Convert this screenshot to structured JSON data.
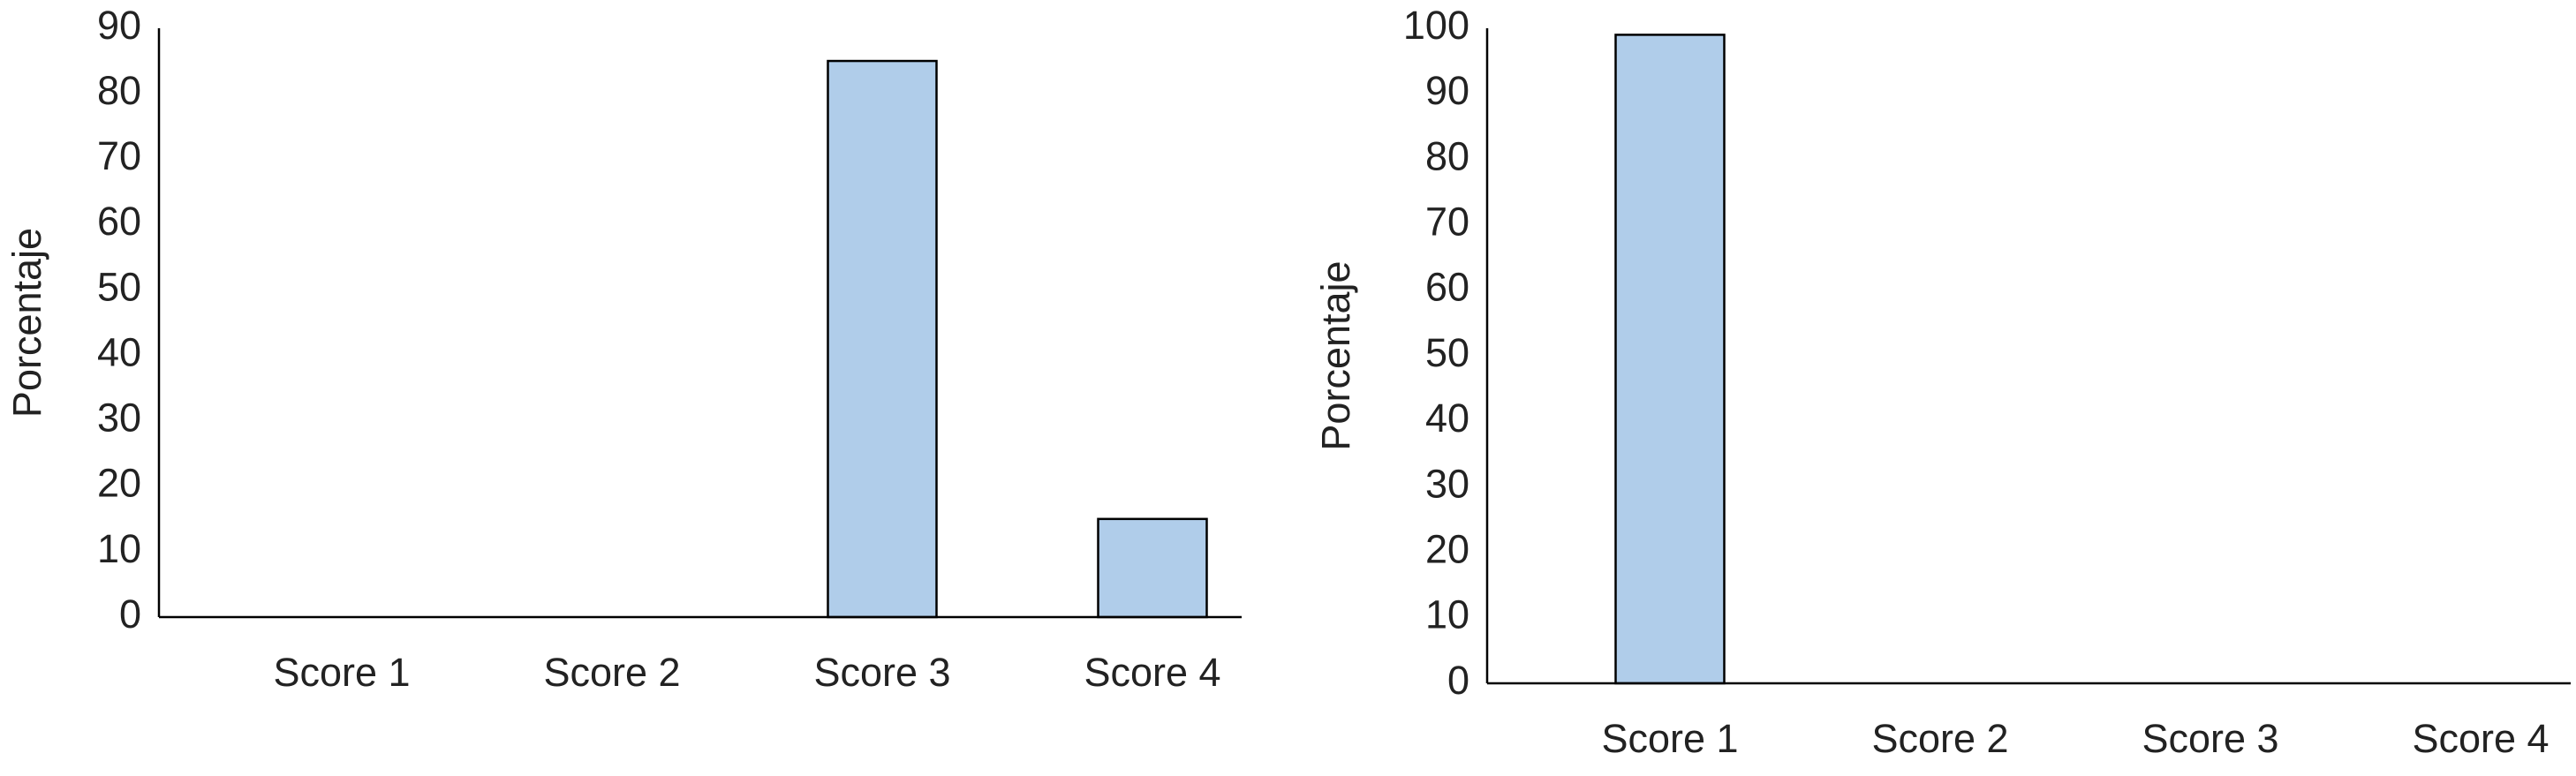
{
  "chart_data": [
    {
      "type": "bar",
      "ylabel": "Porcentaje",
      "categories": [
        "Score 1",
        "Score 2",
        "Score 3",
        "Score 4"
      ],
      "values": [
        0,
        0,
        85,
        15
      ],
      "color": "#b0cdea",
      "ylim": [
        0,
        90
      ],
      "yticks": [
        0,
        10,
        20,
        30,
        40,
        50,
        60,
        70,
        80,
        90
      ]
    },
    {
      "type": "bar",
      "ylabel": "Porcentaje",
      "categories": [
        "Score 1",
        "Score 2",
        "Score 3",
        "Score 4"
      ],
      "values": [
        99,
        0,
        0,
        0
      ],
      "color": "#b0cdea",
      "ylim": [
        0,
        100
      ],
      "yticks": [
        0,
        10,
        20,
        30,
        40,
        50,
        60,
        70,
        80,
        90,
        100
      ]
    }
  ]
}
